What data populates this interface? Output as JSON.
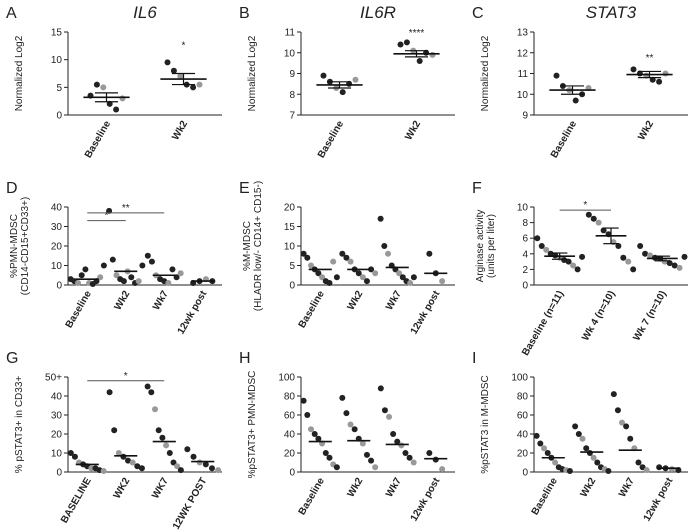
{
  "chart_data": [
    {
      "type": "dot",
      "label": "A",
      "title": "IL6",
      "ylabel": [
        "Normalized Log2"
      ],
      "categories": [
        "Baseline",
        "Wk2"
      ],
      "groups": [
        [
          3.5,
          5.5,
          5,
          2,
          1,
          3
        ],
        [
          9.5,
          8,
          7,
          5.5,
          5,
          5.5
        ]
      ],
      "means": [
        3.2,
        6.5
      ],
      "sems": [
        0.8,
        1.0
      ],
      "ylim": [
        0,
        15
      ],
      "yticks": [
        0,
        5,
        10,
        15
      ],
      "annotations": [
        {
          "category": 1,
          "text": "*",
          "y": 12
        }
      ]
    },
    {
      "type": "dot",
      "label": "B",
      "title": "IL6R",
      "ylabel": [
        "Normalized Log2"
      ],
      "categories": [
        "Baseline",
        "Wk2"
      ],
      "groups": [
        [
          8.9,
          8.6,
          8.3,
          8.1,
          8.5,
          8.7
        ],
        [
          10.4,
          10.5,
          10.1,
          9.6,
          10.0,
          9.9
        ]
      ],
      "means": [
        8.45,
        9.95
      ],
      "sems": [
        0.15,
        0.15
      ],
      "ylim": [
        7,
        11
      ],
      "yticks": [
        7,
        8,
        9,
        10,
        11
      ],
      "annotations": [
        {
          "category": 1,
          "text": "****",
          "y": 10.8
        }
      ]
    },
    {
      "type": "dot",
      "label": "C",
      "title": "STAT3",
      "ylabel": [
        "Normalized Log2"
      ],
      "categories": [
        "Baseline",
        "Wk2"
      ],
      "groups": [
        [
          10.9,
          10.4,
          10.2,
          9.7,
          10.0,
          10.3
        ],
        [
          11.2,
          11.0,
          10.9,
          10.7,
          10.6,
          11.0
        ]
      ],
      "means": [
        10.2,
        10.95
      ],
      "sems": [
        0.2,
        0.15
      ],
      "ylim": [
        9,
        13
      ],
      "yticks": [
        9,
        10,
        11,
        12,
        13
      ],
      "annotations": [
        {
          "category": 1,
          "text": "**",
          "y": 11.6
        }
      ]
    },
    {
      "type": "dot",
      "label": "D",
      "ylabel": [
        "%PMN-MDSC",
        "(CD14-CD15+CD33+)"
      ],
      "categories": [
        "Baseline",
        "Wk2",
        "Wk7",
        "12wk post"
      ],
      "groups": [
        [
          3,
          2,
          1,
          5,
          8,
          1,
          0.5,
          2,
          4,
          10
        ],
        [
          38,
          13,
          5,
          3,
          2,
          7,
          4,
          1,
          2,
          10
        ],
        [
          15,
          12,
          5,
          3,
          2,
          1,
          8,
          4,
          6
        ],
        [
          1,
          2,
          3,
          2
        ]
      ],
      "means": [
        3,
        7,
        5,
        2
      ],
      "ylim": [
        0,
        40
      ],
      "yticks": [
        0,
        10,
        20,
        30,
        40
      ],
      "brackets": [
        {
          "from": 0,
          "to": 1,
          "text": "*",
          "y": 33
        },
        {
          "from": 0,
          "to": 2,
          "text": "**",
          "y": 37
        }
      ]
    },
    {
      "type": "dot",
      "label": "E",
      "ylabel": [
        "%M-MDSC",
        "(HLADR low/- CD14+ CD15-)"
      ],
      "categories": [
        "Baseline",
        "Wk2",
        "Wk7",
        "12wk post"
      ],
      "groups": [
        [
          8,
          7,
          5,
          4,
          3,
          2,
          1,
          0.5,
          6,
          2
        ],
        [
          8,
          7,
          6,
          4,
          3,
          2,
          1,
          4,
          3
        ],
        [
          17,
          10,
          8,
          5,
          4,
          3,
          2,
          1,
          0.5,
          2
        ],
        [
          8,
          3,
          1
        ]
      ],
      "means": [
        4,
        4,
        4.5,
        3
      ],
      "ylim": [
        0,
        20
      ],
      "yticks": [
        0,
        5,
        10,
        15,
        20
      ]
    },
    {
      "type": "dot",
      "label": "F",
      "ylabel": [
        "Arginase activity",
        "(units per liter)"
      ],
      "categories": [
        "Baseline (n=11)",
        "Wk 4 (n=10)",
        "Wk 7 (n=10)"
      ],
      "groups": [
        [
          6,
          5,
          4.5,
          4,
          3.8,
          3.5,
          3.2,
          3,
          2.5,
          2,
          3.6
        ],
        [
          9,
          8.5,
          8,
          7,
          6.5,
          5.5,
          5,
          3.5,
          3,
          2
        ],
        [
          5,
          4,
          3.8,
          3.5,
          3.4,
          3,
          2.8,
          2.5,
          2.2,
          3.6
        ]
      ],
      "means": [
        3.7,
        6.3,
        3.4
      ],
      "sems": [
        0.4,
        1.0,
        0.3
      ],
      "ylim": [
        0,
        10
      ],
      "yticks": [
        0,
        2,
        4,
        6,
        8,
        10
      ],
      "brackets": [
        {
          "from": 0,
          "to": 1,
          "text": "*",
          "y": 9.6
        }
      ]
    },
    {
      "type": "dot",
      "label": "G",
      "ylabel": [
        "% pSTAT3+ in CD33+"
      ],
      "categories": [
        "BASELINE",
        "WK2",
        "WK7",
        "12WK POST"
      ],
      "groups": [
        [
          10,
          8,
          5,
          4,
          3,
          2,
          2,
          1,
          0.5
        ],
        [
          42,
          22,
          10,
          8,
          6,
          5,
          3,
          2
        ],
        [
          45,
          42,
          33,
          22,
          18,
          14,
          10,
          5,
          3,
          1
        ],
        [
          12,
          8,
          5,
          4,
          2,
          1
        ]
      ],
      "means": [
        4,
        8.5,
        16,
        5.5
      ],
      "ylim": [
        0,
        50
      ],
      "yticks": [
        0,
        10,
        20,
        30,
        40,
        {
          "value": 50,
          "label": "50+"
        }
      ],
      "brackets": [
        {
          "from": 0,
          "to": 2,
          "text": "*",
          "y": 48
        }
      ]
    },
    {
      "type": "dot",
      "label": "H",
      "ylabel": [
        "%pSTAT3+ PMN-MDSC"
      ],
      "categories": [
        "Baseline",
        "Wk2",
        "Wk7",
        "12wk post"
      ],
      "groups": [
        [
          75,
          60,
          45,
          40,
          35,
          30,
          20,
          15,
          8,
          5
        ],
        [
          78,
          62,
          50,
          45,
          35,
          30,
          18,
          12,
          5
        ],
        [
          88,
          65,
          58,
          40,
          32,
          28,
          20,
          15,
          10
        ],
        [
          20,
          13,
          3
        ]
      ],
      "means": [
        32,
        33,
        29,
        14
      ],
      "ylim": [
        0,
        100
      ],
      "yticks": [
        0,
        20,
        40,
        60,
        80,
        100
      ]
    },
    {
      "type": "dot",
      "label": "I",
      "ylabel": [
        "%pSTAT3 in M-MDSC"
      ],
      "categories": [
        "Baseline",
        "Wk2",
        "Wk7",
        "12wk post"
      ],
      "groups": [
        [
          38,
          30,
          25,
          20,
          15,
          10,
          5,
          3,
          2,
          1
        ],
        [
          48,
          40,
          35,
          25,
          20,
          15,
          10,
          5,
          3,
          1
        ],
        [
          82,
          65,
          52,
          48,
          35,
          25,
          10,
          5,
          2
        ],
        [
          5,
          4,
          3,
          2
        ]
      ],
      "means": [
        15,
        21,
        23,
        4
      ],
      "ylim": [
        0,
        100
      ],
      "yticks": [
        0,
        20,
        40,
        60,
        80,
        100
      ]
    }
  ]
}
